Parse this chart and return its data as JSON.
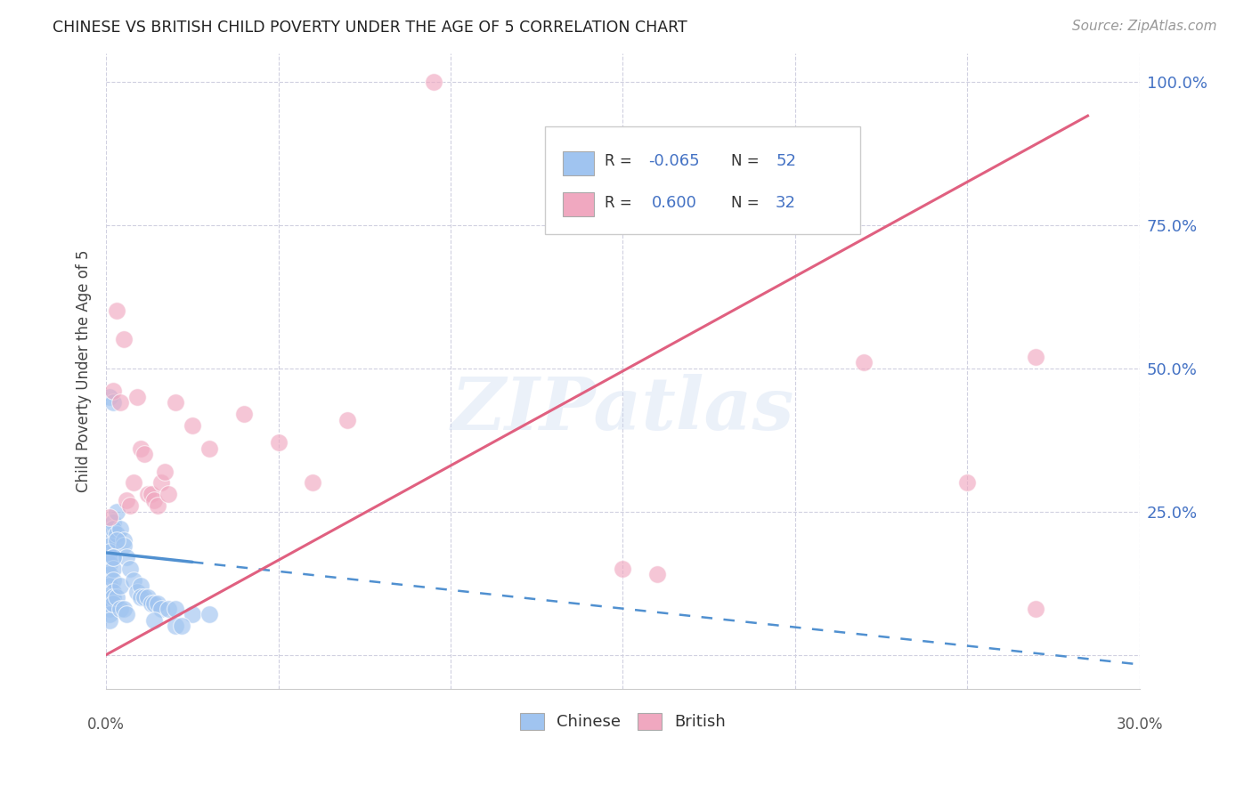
{
  "title": "CHINESE VS BRITISH CHILD POVERTY UNDER THE AGE OF 5 CORRELATION CHART",
  "source": "Source: ZipAtlas.com",
  "ylabel": "Child Poverty Under the Age of 5",
  "xmin": 0.0,
  "xmax": 0.3,
  "ymin": -0.06,
  "ymax": 1.05,
  "chinese_color": "#a0c4f0",
  "british_color": "#f0a8c0",
  "chinese_trend_color": "#5090d0",
  "british_trend_color": "#e06080",
  "watermark": "ZIPatlas",
  "background_color": "#ffffff",
  "grid_color": "#d0d0e0",
  "figsize": [
    14.06,
    8.92
  ],
  "dpi": 100,
  "chinese_x": [
    0.001,
    0.001,
    0.001,
    0.001,
    0.001,
    0.001,
    0.001,
    0.001,
    0.001,
    0.001,
    0.001,
    0.002,
    0.002,
    0.002,
    0.002,
    0.002,
    0.002,
    0.002,
    0.002,
    0.003,
    0.003,
    0.003,
    0.004,
    0.004,
    0.004,
    0.005,
    0.005,
    0.005,
    0.006,
    0.007,
    0.008,
    0.009,
    0.01,
    0.01,
    0.011,
    0.012,
    0.013,
    0.014,
    0.015,
    0.016,
    0.018,
    0.02,
    0.025,
    0.03,
    0.001,
    0.002,
    0.003,
    0.002,
    0.006,
    0.014,
    0.02,
    0.022
  ],
  "chinese_y": [
    0.2,
    0.19,
    0.18,
    0.16,
    0.14,
    0.12,
    0.1,
    0.09,
    0.08,
    0.07,
    0.06,
    0.23,
    0.22,
    0.17,
    0.15,
    0.13,
    0.11,
    0.1,
    0.09,
    0.25,
    0.21,
    0.1,
    0.22,
    0.12,
    0.08,
    0.2,
    0.19,
    0.08,
    0.17,
    0.15,
    0.13,
    0.11,
    0.12,
    0.1,
    0.1,
    0.1,
    0.09,
    0.09,
    0.09,
    0.08,
    0.08,
    0.08,
    0.07,
    0.07,
    0.45,
    0.44,
    0.2,
    0.17,
    0.07,
    0.06,
    0.05,
    0.05
  ],
  "british_x": [
    0.001,
    0.002,
    0.003,
    0.004,
    0.005,
    0.006,
    0.007,
    0.008,
    0.009,
    0.01,
    0.011,
    0.012,
    0.013,
    0.014,
    0.015,
    0.016,
    0.017,
    0.018,
    0.02,
    0.025,
    0.03,
    0.04,
    0.05,
    0.06,
    0.07,
    0.095,
    0.15,
    0.16,
    0.22,
    0.25,
    0.27,
    0.27
  ],
  "british_y": [
    0.24,
    0.46,
    0.6,
    0.44,
    0.55,
    0.27,
    0.26,
    0.3,
    0.45,
    0.36,
    0.35,
    0.28,
    0.28,
    0.27,
    0.26,
    0.3,
    0.32,
    0.28,
    0.44,
    0.4,
    0.36,
    0.42,
    0.37,
    0.3,
    0.41,
    1.0,
    0.15,
    0.14,
    0.51,
    0.3,
    0.52,
    0.08
  ]
}
